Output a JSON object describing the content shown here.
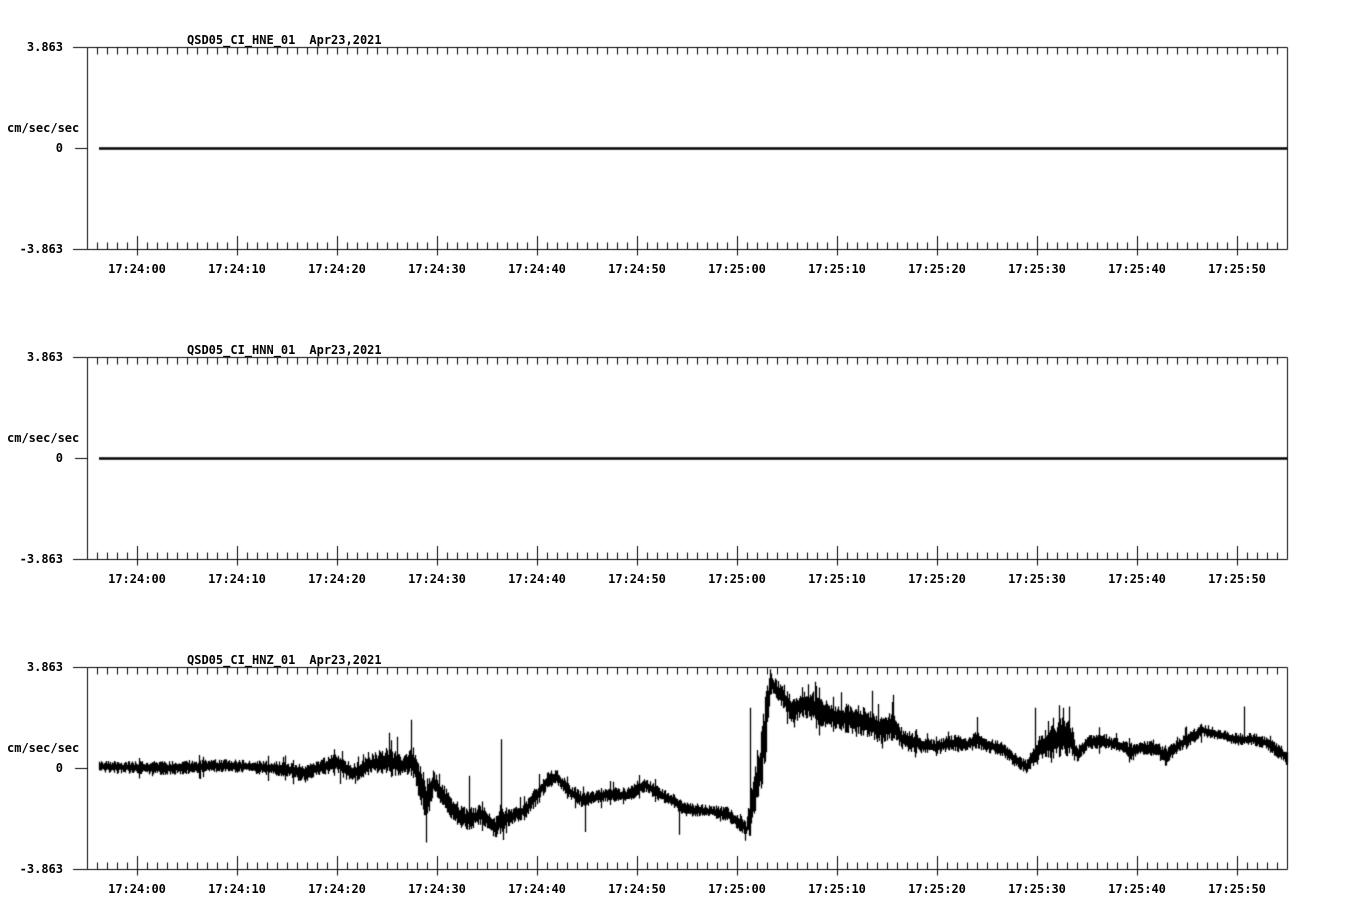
{
  "app": {
    "background": "#ffffff",
    "foreground": "#000000",
    "description_labels": {
      "station_network": "QSD05_CI",
      "date_shown": "Apr23,2021"
    }
  },
  "chart_data": [
    {
      "type": "line",
      "title": "QSD05_CI_HNE_01",
      "date_label": "Apr23,2021",
      "ylabel": "cm/sec/sec",
      "ytick_labels": [
        "3.863",
        "0",
        "-3.863"
      ],
      "ylim": [
        -3.863,
        3.863
      ],
      "x_start_time": "17:23:55",
      "x_end_time": "17:25:55",
      "xtick_labels": [
        "17:24:00",
        "17:24:10",
        "17:24:20",
        "17:24:30",
        "17:24:40",
        "17:24:50",
        "17:25:00",
        "17:25:10",
        "17:25:20",
        "17:25:30",
        "17:25:40",
        "17:25:50"
      ],
      "xtick_seconds": [
        5,
        15,
        25,
        35,
        45,
        55,
        65,
        75,
        85,
        95,
        105,
        115
      ],
      "minor_tick_interval_seconds": 1,
      "grid": false,
      "trace": {
        "start_seconds": 1.2,
        "end_seconds": 120,
        "keypoints_t_mean_amp": [
          [
            1.2,
            0,
            0
          ],
          [
            120,
            0,
            0
          ]
        ],
        "spikes_t_value": []
      }
    },
    {
      "type": "line",
      "title": "QSD05_CI_HNN_01",
      "date_label": "Apr23,2021",
      "ylabel": "cm/sec/sec",
      "ytick_labels": [
        "3.863",
        "0",
        "-3.863"
      ],
      "ylim": [
        -3.863,
        3.863
      ],
      "x_start_time": "17:23:55",
      "x_end_time": "17:25:55",
      "xtick_labels": [
        "17:24:00",
        "17:24:10",
        "17:24:20",
        "17:24:30",
        "17:24:40",
        "17:24:50",
        "17:25:00",
        "17:25:10",
        "17:25:20",
        "17:25:30",
        "17:25:40",
        "17:25:50"
      ],
      "xtick_seconds": [
        5,
        15,
        25,
        35,
        45,
        55,
        65,
        75,
        85,
        95,
        105,
        115
      ],
      "minor_tick_interval_seconds": 1,
      "grid": false,
      "trace": {
        "start_seconds": 1.2,
        "end_seconds": 120,
        "keypoints_t_mean_amp": [
          [
            1.2,
            0,
            0
          ],
          [
            120,
            0,
            0
          ]
        ],
        "spikes_t_value": []
      }
    },
    {
      "type": "line",
      "title": "QSD05_CI_HNZ_01",
      "date_label": "Apr23,2021",
      "ylabel": "cm/sec/sec",
      "ytick_labels": [
        "3.863",
        "0",
        "-3.863"
      ],
      "ylim": [
        -3.863,
        3.863
      ],
      "x_start_time": "17:23:55",
      "x_end_time": "17:25:55",
      "xtick_labels": [
        "17:24:00",
        "17:24:10",
        "17:24:20",
        "17:24:30",
        "17:24:40",
        "17:24:50",
        "17:25:00",
        "17:25:10",
        "17:25:20",
        "17:25:30",
        "17:25:40",
        "17:25:50"
      ],
      "xtick_seconds": [
        5,
        15,
        25,
        35,
        45,
        55,
        65,
        75,
        85,
        95,
        105,
        115
      ],
      "minor_tick_interval_seconds": 1,
      "grid": false,
      "trace": {
        "start_seconds": 1.2,
        "end_seconds": 120,
        "keypoints_t_mean_amp": [
          [
            1.2,
            0.05,
            0.22
          ],
          [
            8,
            0.0,
            0.28
          ],
          [
            14,
            0.1,
            0.25
          ],
          [
            20,
            -0.05,
            0.3
          ],
          [
            21.5,
            -0.2,
            0.35
          ],
          [
            23,
            0.0,
            0.3
          ],
          [
            25,
            0.2,
            0.4
          ],
          [
            26.5,
            -0.25,
            0.4
          ],
          [
            28,
            0.15,
            0.35
          ],
          [
            30,
            0.25,
            0.55
          ],
          [
            31.5,
            0.1,
            0.45
          ],
          [
            32.5,
            0.3,
            0.6
          ],
          [
            33.0,
            -0.3,
            0.7
          ],
          [
            33.9,
            -1.3,
            0.9
          ],
          [
            34.6,
            -0.55,
            0.5
          ],
          [
            35.5,
            -1.0,
            0.5
          ],
          [
            36.5,
            -1.6,
            0.45
          ],
          [
            38,
            -2.0,
            0.45
          ],
          [
            39.5,
            -1.75,
            0.4
          ],
          [
            40.8,
            -2.3,
            0.45
          ],
          [
            41.45,
            -2.0,
            0.5
          ],
          [
            42.5,
            -1.85,
            0.3
          ],
          [
            43.8,
            -1.6,
            0.35
          ],
          [
            45.0,
            -1.0,
            0.4
          ],
          [
            46.2,
            -0.4,
            0.35
          ],
          [
            47.0,
            -0.35,
            0.3
          ],
          [
            48.2,
            -0.9,
            0.3
          ],
          [
            49.4,
            -1.2,
            0.3
          ],
          [
            50.5,
            -1.15,
            0.28
          ],
          [
            52,
            -1.0,
            0.3
          ],
          [
            54,
            -1.05,
            0.3
          ],
          [
            55.8,
            -0.65,
            0.3
          ],
          [
            57,
            -0.95,
            0.28
          ],
          [
            58.5,
            -1.25,
            0.3
          ],
          [
            60,
            -1.6,
            0.28
          ],
          [
            62,
            -1.65,
            0.25
          ],
          [
            64,
            -1.75,
            0.28
          ],
          [
            65.3,
            -2.1,
            0.35
          ],
          [
            65.9,
            -2.35,
            0.3
          ],
          [
            66.35,
            -1.7,
            0.9
          ],
          [
            66.9,
            -0.6,
            1.1
          ],
          [
            67.4,
            0.3,
            1.2
          ],
          [
            67.9,
            1.8,
            1.3
          ],
          [
            68.3,
            3.3,
            0.5
          ],
          [
            68.8,
            3.0,
            0.45
          ],
          [
            69.6,
            2.7,
            0.45
          ],
          [
            70.5,
            2.2,
            0.5
          ],
          [
            71.5,
            2.4,
            0.5
          ],
          [
            72.5,
            2.4,
            0.6
          ],
          [
            73.5,
            2.1,
            0.55
          ],
          [
            74.5,
            2.0,
            0.5
          ],
          [
            75.5,
            1.9,
            0.55
          ],
          [
            76.5,
            1.9,
            0.6
          ],
          [
            78,
            1.7,
            0.6
          ],
          [
            79.5,
            1.45,
            0.55
          ],
          [
            80.5,
            1.6,
            0.55
          ],
          [
            81.5,
            1.1,
            0.45
          ],
          [
            82.5,
            1.0,
            0.4
          ],
          [
            83.5,
            0.85,
            0.3
          ],
          [
            85,
            0.8,
            0.3
          ],
          [
            86.5,
            0.95,
            0.35
          ],
          [
            88,
            0.9,
            0.3
          ],
          [
            89,
            1.1,
            0.4
          ],
          [
            90,
            0.85,
            0.3
          ],
          [
            91.5,
            0.75,
            0.3
          ],
          [
            92.6,
            0.35,
            0.3
          ],
          [
            93.9,
            0.05,
            0.25
          ],
          [
            94.6,
            0.4,
            0.4
          ],
          [
            95.3,
            0.8,
            0.6
          ],
          [
            96.2,
            0.9,
            0.6
          ],
          [
            97.3,
            1.2,
            0.8
          ],
          [
            98.3,
            1.1,
            0.8
          ],
          [
            99.0,
            0.5,
            0.3
          ],
          [
            100,
            1.0,
            0.3
          ],
          [
            101.5,
            1.05,
            0.3
          ],
          [
            103,
            0.9,
            0.28
          ],
          [
            104.5,
            0.6,
            0.3
          ],
          [
            105.5,
            0.8,
            0.3
          ],
          [
            107,
            0.7,
            0.3
          ],
          [
            107.9,
            0.45,
            0.3
          ],
          [
            109,
            0.85,
            0.3
          ],
          [
            110.5,
            1.2,
            0.3
          ],
          [
            111.5,
            1.45,
            0.25
          ],
          [
            112.5,
            1.35,
            0.25
          ],
          [
            113.5,
            1.25,
            0.22
          ],
          [
            115,
            1.1,
            0.25
          ],
          [
            116.5,
            1.1,
            0.25
          ],
          [
            118,
            0.95,
            0.28
          ],
          [
            119.3,
            0.6,
            0.3
          ],
          [
            120,
            0.4,
            0.25
          ]
        ],
        "spikes_t_value": [
          [
            21.8,
            -0.55
          ],
          [
            25.5,
            0.65
          ],
          [
            26.8,
            -0.6
          ],
          [
            30.2,
            1.35
          ],
          [
            31.0,
            1.2
          ],
          [
            32.4,
            1.85
          ],
          [
            33.9,
            -2.85
          ],
          [
            38.2,
            -0.3
          ],
          [
            41.4,
            1.1
          ],
          [
            41.55,
            -2.75
          ],
          [
            46.4,
            -0.1
          ],
          [
            49.8,
            -2.45
          ],
          [
            59.2,
            -2.55
          ],
          [
            66.3,
            2.3
          ],
          [
            68.3,
            3.78
          ],
          [
            70.7,
            1.55
          ],
          [
            72.1,
            3.2
          ],
          [
            72.8,
            3.3
          ],
          [
            75.4,
            2.9
          ],
          [
            78.5,
            2.95
          ],
          [
            79.5,
            0.75
          ],
          [
            80.6,
            2.8
          ],
          [
            86.1,
            1.4
          ],
          [
            89.0,
            1.95
          ],
          [
            93.9,
            -0.2
          ],
          [
            94.8,
            2.3
          ],
          [
            96.1,
            1.8
          ],
          [
            97.2,
            2.4
          ],
          [
            97.6,
            2.3
          ],
          [
            98.2,
            2.35
          ],
          [
            104.6,
            0.3
          ],
          [
            107.9,
            0.1
          ],
          [
            109.8,
            1.55
          ],
          [
            111.3,
            1.6
          ],
          [
            115.7,
            2.35
          ],
          [
            119.8,
            0.3
          ]
        ]
      }
    }
  ]
}
